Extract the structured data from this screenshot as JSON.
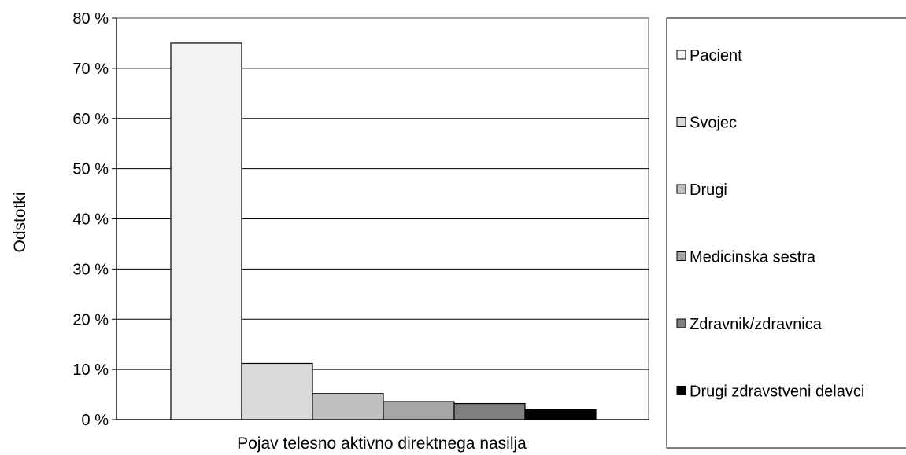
{
  "chart_data": {
    "type": "bar",
    "xlabel": "Pojav telesno aktivno direktnega nasilja",
    "ylabel": "Odstotki",
    "ylim": [
      0,
      80
    ],
    "y_ticks": [
      0,
      10,
      20,
      30,
      40,
      50,
      60,
      70,
      80
    ],
    "y_tick_labels": [
      "0 %",
      "10 %",
      "20 %",
      "30 %",
      "40 %",
      "50 %",
      "60 %",
      "70 %",
      "80 %"
    ],
    "grid": true,
    "legend_position": "right",
    "series": [
      {
        "name": "Pacient",
        "values": [
          75
        ],
        "color": "#f2f2f2"
      },
      {
        "name": "Svojec",
        "values": [
          11.2
        ],
        "color": "#d9d9d9"
      },
      {
        "name": "Drugi",
        "values": [
          5.2
        ],
        "color": "#bfbfbf"
      },
      {
        "name": "Medicinska sestra",
        "values": [
          3.6
        ],
        "color": "#a6a6a6"
      },
      {
        "name": "Zdravnik/zdravnica",
        "values": [
          3.2
        ],
        "color": "#808080"
      },
      {
        "name": "Drugi zdravstveni delavci",
        "values": [
          2
        ],
        "color": "#000000"
      }
    ]
  }
}
